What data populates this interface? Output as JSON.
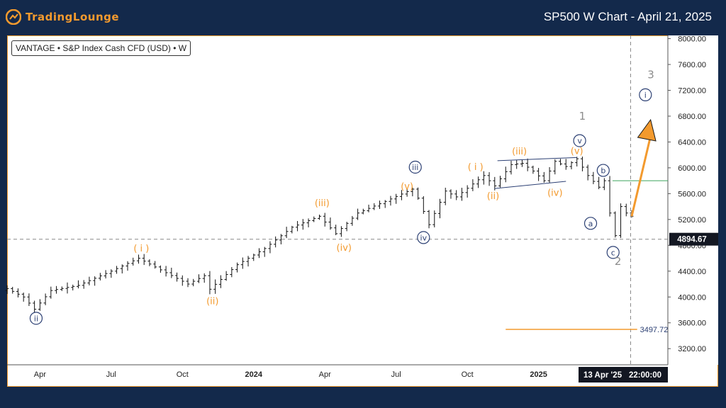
{
  "header": {
    "brand": "TradingLounge",
    "title": "SP500 W Chart - April 21, 2025"
  },
  "colors": {
    "background": "#13294b",
    "brand": "#f39a2e",
    "orange": "#f39a2e",
    "navy": "#2b3f73",
    "gray": "#8c8c8c",
    "green": "#3ba55c"
  },
  "chart_data": {
    "type": "candlestick",
    "symbol": "VANTAGE • S&P Index Cash CFD (USD) • W",
    "ylim": [
      2950,
      8050
    ],
    "yticks": [
      3200,
      3600,
      4000,
      4400,
      4800,
      5200,
      5600,
      6000,
      6400,
      6800,
      7200,
      7600,
      8000
    ],
    "xlim": [
      0,
      120.6
    ],
    "xticks": [
      {
        "t": 6,
        "label": "Apr"
      },
      {
        "t": 19,
        "label": "Jul"
      },
      {
        "t": 32,
        "label": "Oct"
      },
      {
        "t": 45,
        "label": "2024"
      },
      {
        "t": 58,
        "label": "Apr"
      },
      {
        "t": 71,
        "label": "Jul"
      },
      {
        "t": 84,
        "label": "Oct"
      },
      {
        "t": 97,
        "label": "2025"
      }
    ],
    "price_label": {
      "value": 4894.67,
      "text": "4894.67"
    },
    "level_label": {
      "value": 3497.72,
      "text": "3497.72"
    },
    "crosshair_time": "13 Apr '25",
    "crosshair_clock": "22:00:00",
    "green_level": 5800,
    "anchors": [
      [
        0,
        4130
      ],
      [
        3,
        4000
      ],
      [
        5,
        3810
      ],
      [
        8,
        4100
      ],
      [
        13,
        4180
      ],
      [
        19,
        4400
      ],
      [
        24,
        4600
      ],
      [
        28,
        4420
      ],
      [
        33,
        4200
      ],
      [
        36,
        4330
      ],
      [
        37,
        4120
      ],
      [
        42,
        4500
      ],
      [
        47,
        4750
      ],
      [
        52,
        5080
      ],
      [
        57,
        5250
      ],
      [
        60,
        4980
      ],
      [
        64,
        5300
      ],
      [
        69,
        5480
      ],
      [
        74,
        5670
      ],
      [
        75,
        5530
      ],
      [
        77,
        5120
      ],
      [
        80,
        5640
      ],
      [
        82,
        5550
      ],
      [
        85,
        5750
      ],
      [
        87,
        5880
      ],
      [
        89,
        5720
      ],
      [
        92,
        6050
      ],
      [
        94,
        6070
      ],
      [
        96,
        5950
      ],
      [
        98,
        5800
      ],
      [
        100,
        6100
      ],
      [
        102,
        6020
      ],
      [
        104,
        6140
      ],
      [
        106,
        5880
      ],
      [
        108,
        5700
      ],
      [
        109,
        5800
      ],
      [
        110,
        5300
      ],
      [
        111,
        4950
      ],
      [
        112,
        5400
      ],
      [
        113,
        5300
      ],
      [
        114,
        5250
      ]
    ],
    "wave_labels": [
      {
        "t": 5.3,
        "v": 3670,
        "text": "ii",
        "color": "navy",
        "circled": true
      },
      {
        "t": 24.5,
        "v": 4760,
        "text": "( i )",
        "color": "orange",
        "circled": false
      },
      {
        "t": 37.5,
        "v": 3940,
        "text": "(ii)",
        "color": "orange",
        "circled": false
      },
      {
        "t": 57.5,
        "v": 5460,
        "text": "(iii)",
        "color": "orange",
        "circled": false
      },
      {
        "t": 61.5,
        "v": 4770,
        "text": "(iv)",
        "color": "orange",
        "circled": false
      },
      {
        "t": 74.5,
        "v": 6010,
        "text": "iii",
        "color": "navy",
        "circled": true
      },
      {
        "t": 73,
        "v": 5720,
        "text": "(v)",
        "color": "orange",
        "circled": false
      },
      {
        "t": 76,
        "v": 4920,
        "text": "iv",
        "color": "navy",
        "circled": true
      },
      {
        "t": 85.5,
        "v": 6020,
        "text": "( i )",
        "color": "orange",
        "circled": false
      },
      {
        "t": 88.7,
        "v": 5570,
        "text": "(ii)",
        "color": "orange",
        "circled": false
      },
      {
        "t": 93.5,
        "v": 6260,
        "text": "(iii)",
        "color": "orange",
        "circled": false
      },
      {
        "t": 100,
        "v": 5620,
        "text": "(iv)",
        "color": "orange",
        "circled": false
      },
      {
        "t": 104,
        "v": 6270,
        "text": "(v)",
        "color": "orange",
        "circled": false
      },
      {
        "t": 104.5,
        "v": 6420,
        "text": "v",
        "color": "navy",
        "circled": true
      },
      {
        "t": 105,
        "v": 6800,
        "text": "1",
        "color": "gray",
        "circled": false
      },
      {
        "t": 108.8,
        "v": 5960,
        "text": "b",
        "color": "navy",
        "circled": true
      },
      {
        "t": 106.5,
        "v": 5140,
        "text": "a",
        "color": "navy",
        "circled": true
      },
      {
        "t": 110.6,
        "v": 4690,
        "text": "c",
        "color": "navy",
        "circled": true
      },
      {
        "t": 111.5,
        "v": 4550,
        "text": "2",
        "color": "gray",
        "circled": false
      },
      {
        "t": 117.5,
        "v": 7440,
        "text": "3",
        "color": "gray",
        "circled": false
      },
      {
        "t": 116.5,
        "v": 7130,
        "text": "i",
        "color": "navy",
        "circled": true
      }
    ],
    "channel": {
      "upper": [
        [
          89.5,
          6110
        ],
        [
          104,
          6160
        ]
      ],
      "lower": [
        [
          89,
          5680
        ],
        [
          102,
          5790
        ]
      ]
    },
    "projection_arrow": {
      "from": [
        114,
        5250
      ],
      "to": [
        117.3,
        6680
      ]
    }
  }
}
